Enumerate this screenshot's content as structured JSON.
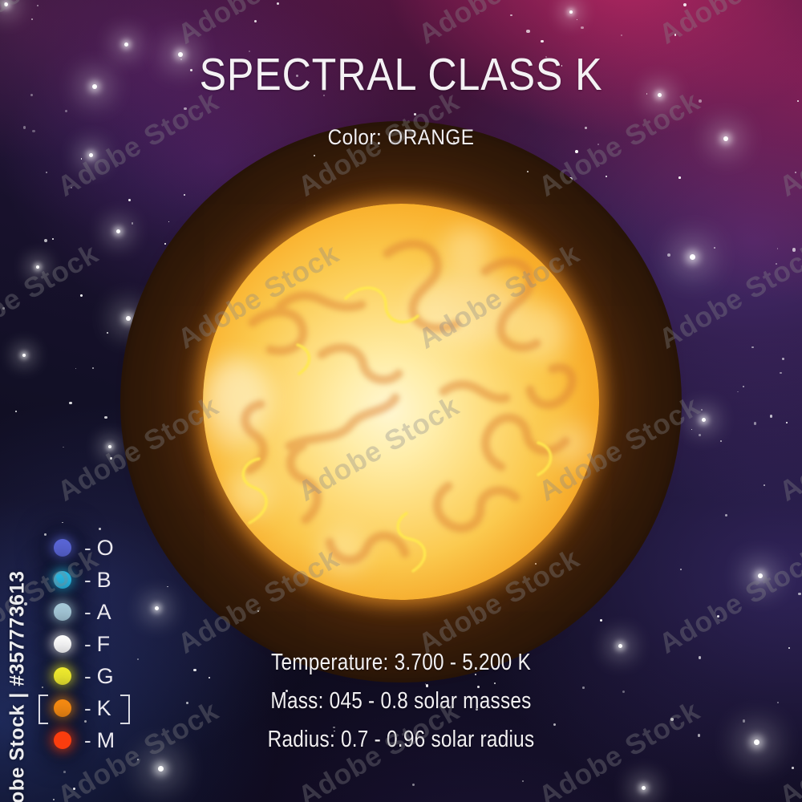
{
  "title": "SPECTRAL CLASS K",
  "subtitle": "Color: ORANGE",
  "colors": {
    "star_surface": "#f9b02c",
    "star_core": "#fff3c4",
    "background_base": "#0d0a1c"
  },
  "legend": {
    "dash": "-",
    "items": [
      {
        "label": "O",
        "color": "#5b67d9",
        "selected": false
      },
      {
        "label": "B",
        "color": "#2ab9e4",
        "selected": false
      },
      {
        "label": "A",
        "color": "#a9cddd",
        "selected": false
      },
      {
        "label": "F",
        "color": "#ffffff",
        "selected": false
      },
      {
        "label": "G",
        "color": "#f2ee2f",
        "selected": false
      },
      {
        "label": "K",
        "color": "#f98c12",
        "selected": true
      },
      {
        "label": "M",
        "color": "#fa3d0e",
        "selected": false
      }
    ]
  },
  "stats": [
    "Temperature: 3.700 - 5.200 K",
    "Mass: 045 - 0.8 solar masses",
    "Radius: 0.7 - 0.96 solar radius"
  ],
  "watermark": {
    "tile_text": "Adobe Stock",
    "side_text": "Adobe Stock | #357773613"
  }
}
